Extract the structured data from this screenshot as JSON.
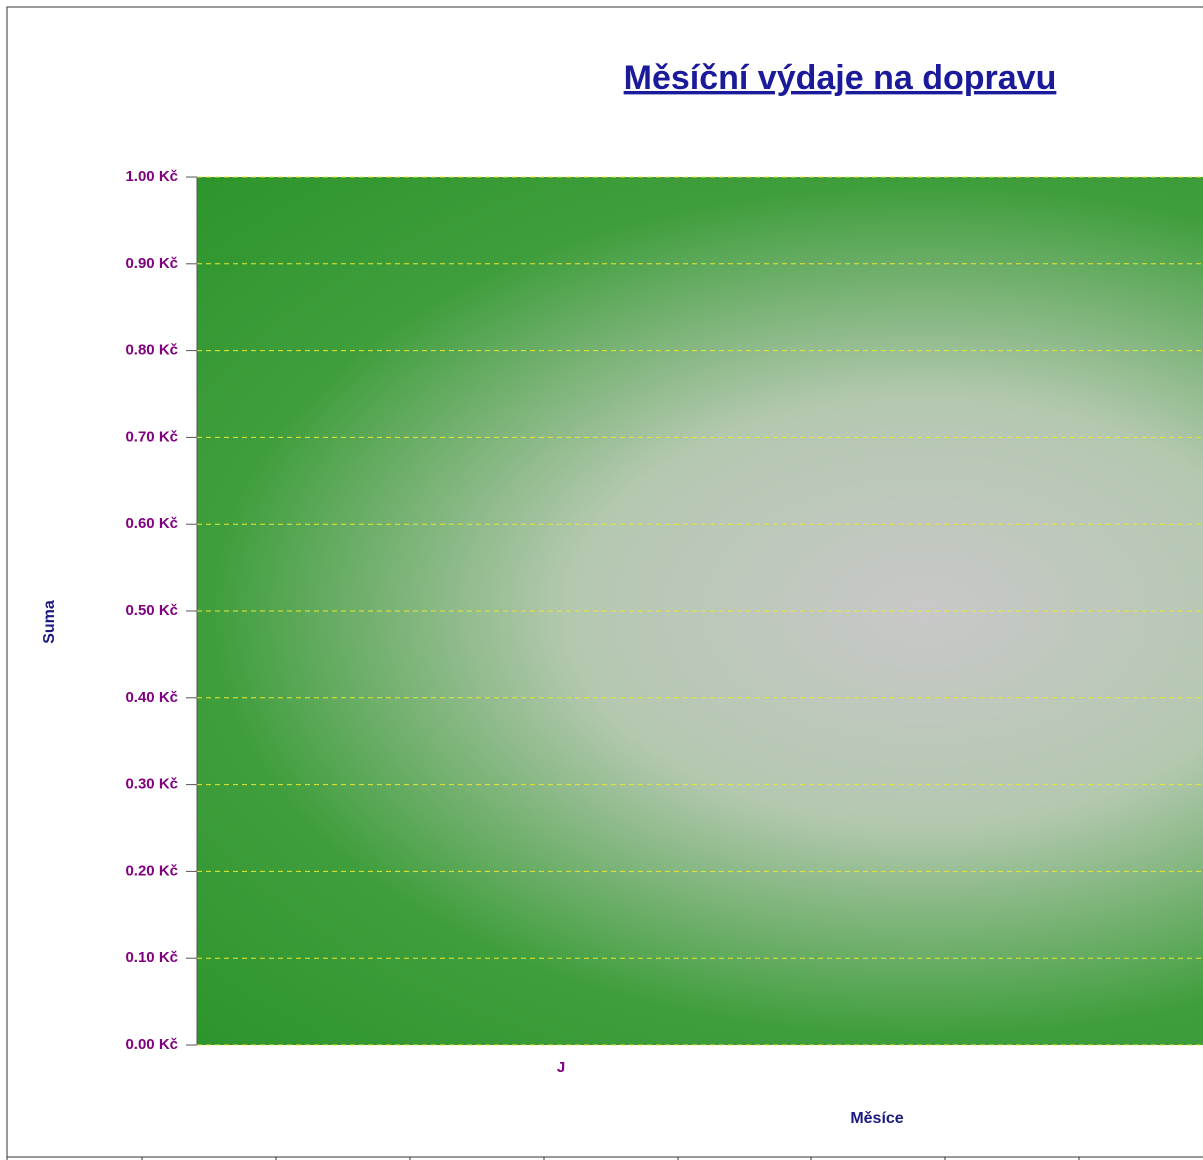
{
  "chart_data": {
    "type": "bar",
    "title": "Měsíční výdaje na dopravu",
    "x_label": "Měsíce",
    "y_label": "Suma",
    "categories": [
      "J",
      null
    ],
    "values": [
      0,
      0
    ],
    "color": "#000000",
    "ylim": [
      0,
      1
    ],
    "yticks": [
      {
        "value": 0,
        "label": "0.00 Kč"
      },
      {
        "value": 0.1,
        "label": "0.10 Kč"
      },
      {
        "value": 0.2,
        "label": "0.20 Kč"
      },
      {
        "value": 0.3,
        "label": "0.30 Kč"
      },
      {
        "value": 0.4,
        "label": "0.40 Kč"
      },
      {
        "value": 0.5,
        "label": "0.50 Kč"
      },
      {
        "value": 0.6,
        "label": "0.60 Kč"
      },
      {
        "value": 0.7,
        "label": "0.70 Kč"
      },
      {
        "value": 0.8,
        "label": "0.80 Kč"
      },
      {
        "value": 0.9,
        "label": "0.90 Kč"
      },
      {
        "value": 1,
        "label": "1.00 Kč"
      }
    ],
    "grid": true
  }
}
